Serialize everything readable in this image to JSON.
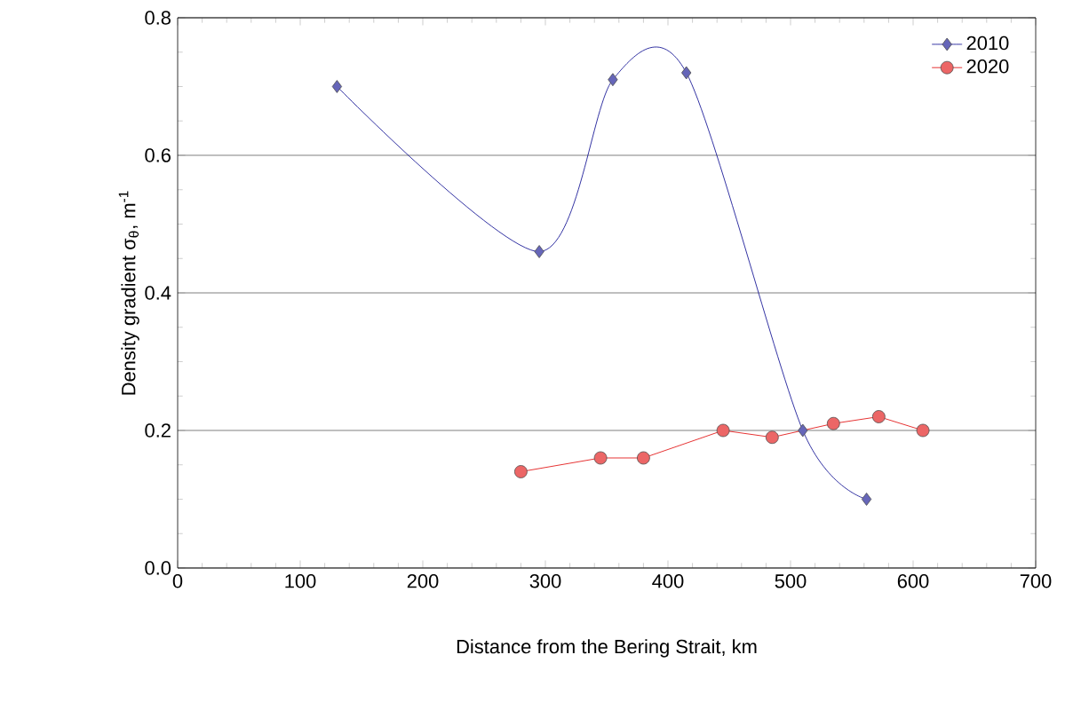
{
  "chart_data": {
    "type": "line",
    "xlabel": "Distance from the Bering Strait, km",
    "ylabel": "Density gradient σ$_{θ}$, m$^{-1}$",
    "xlim": [
      0,
      700
    ],
    "xticks": [
      0,
      100,
      200,
      300,
      400,
      500,
      600,
      700
    ],
    "ylim": [
      0,
      0.8
    ],
    "yticks": [
      {
        "value": 0,
        "label": "0.0"
      },
      0.2,
      0.4,
      0.6,
      0.8
    ],
    "grid": "y",
    "legend": "top right",
    "series": [
      {
        "name": "2010",
        "color": "#00008b",
        "marker": "diamond",
        "x": [
          130,
          295,
          355,
          415,
          510,
          562
        ],
        "values": [
          0.7,
          0.46,
          0.71,
          0.72,
          0.2,
          0.1
        ]
      },
      {
        "name": "2020",
        "color": "#e00000",
        "marker": "circle",
        "x": [
          280,
          345,
          380,
          445,
          485,
          535,
          572,
          608
        ],
        "values": [
          0.14,
          0.16,
          0.16,
          0.2,
          0.19,
          0.21,
          0.22,
          0.2
        ]
      }
    ]
  }
}
